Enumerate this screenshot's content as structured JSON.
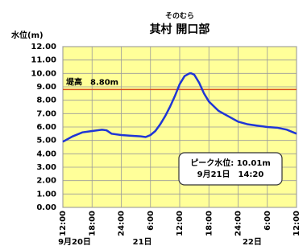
{
  "chart_data": {
    "type": "line",
    "subtitle": "そのむら",
    "title": "其村 開口部",
    "y_label": "水位(m)",
    "x": [
      0,
      2,
      4,
      6,
      8,
      9,
      10,
      12,
      14,
      16,
      17,
      18,
      19,
      20,
      21,
      22,
      23,
      24,
      25,
      26,
      26.33,
      27,
      28,
      29,
      30,
      32,
      34,
      36,
      38,
      40,
      42,
      44,
      46,
      48
    ],
    "series": [
      {
        "color": "#1f35d6",
        "values": [
          4.9,
          5.3,
          5.6,
          5.7,
          5.8,
          5.75,
          5.5,
          5.4,
          5.35,
          5.3,
          5.25,
          5.4,
          5.7,
          6.2,
          6.8,
          7.5,
          8.3,
          9.2,
          9.8,
          10.0,
          10.01,
          9.9,
          9.3,
          8.5,
          7.9,
          7.2,
          6.8,
          6.4,
          6.2,
          6.1,
          6.0,
          5.95,
          5.8,
          5.5
        ]
      }
    ],
    "xlim": [
      0,
      48
    ],
    "xticks": [
      {
        "value": 0,
        "label": "12:00"
      },
      {
        "value": 6,
        "label": "18:00"
      },
      {
        "value": 12,
        "label": "24:00"
      },
      {
        "value": 18,
        "label": "6:00"
      },
      {
        "value": 24,
        "label": "12:00"
      },
      {
        "value": 30,
        "label": "18:00"
      },
      {
        "value": 36,
        "label": "24:00"
      },
      {
        "value": 42,
        "label": "6:00"
      },
      {
        "value": 48,
        "label": "12:00"
      }
    ],
    "date_labels": [
      "9月20日",
      "21日",
      "22日"
    ],
    "ylim": [
      0,
      12
    ],
    "yticks": [
      {
        "value": 0,
        "label": "0.00"
      },
      {
        "value": 1,
        "label": "1.00"
      },
      {
        "value": 2,
        "label": "2.00"
      },
      {
        "value": 3,
        "label": "3.00"
      },
      {
        "value": 4,
        "label": "4.00"
      },
      {
        "value": 5,
        "label": "5.00"
      },
      {
        "value": 6,
        "label": "6.00"
      },
      {
        "value": 7,
        "label": "7.00"
      },
      {
        "value": 8,
        "label": "8.00"
      },
      {
        "value": 9,
        "label": "9.00"
      },
      {
        "value": 10,
        "label": "10.00"
      },
      {
        "value": 11,
        "label": "11.00"
      },
      {
        "value": 12,
        "label": "12.00"
      }
    ],
    "grid": true,
    "plot_background": "#ffff99",
    "threshold": 8.8,
    "threshold_name": "堤高",
    "threshold_label": "8.80m",
    "threshold_color": "#d9531e",
    "peak_note": [
      "ピーク水位: 10.01m",
      "9月21日　14:20"
    ]
  }
}
